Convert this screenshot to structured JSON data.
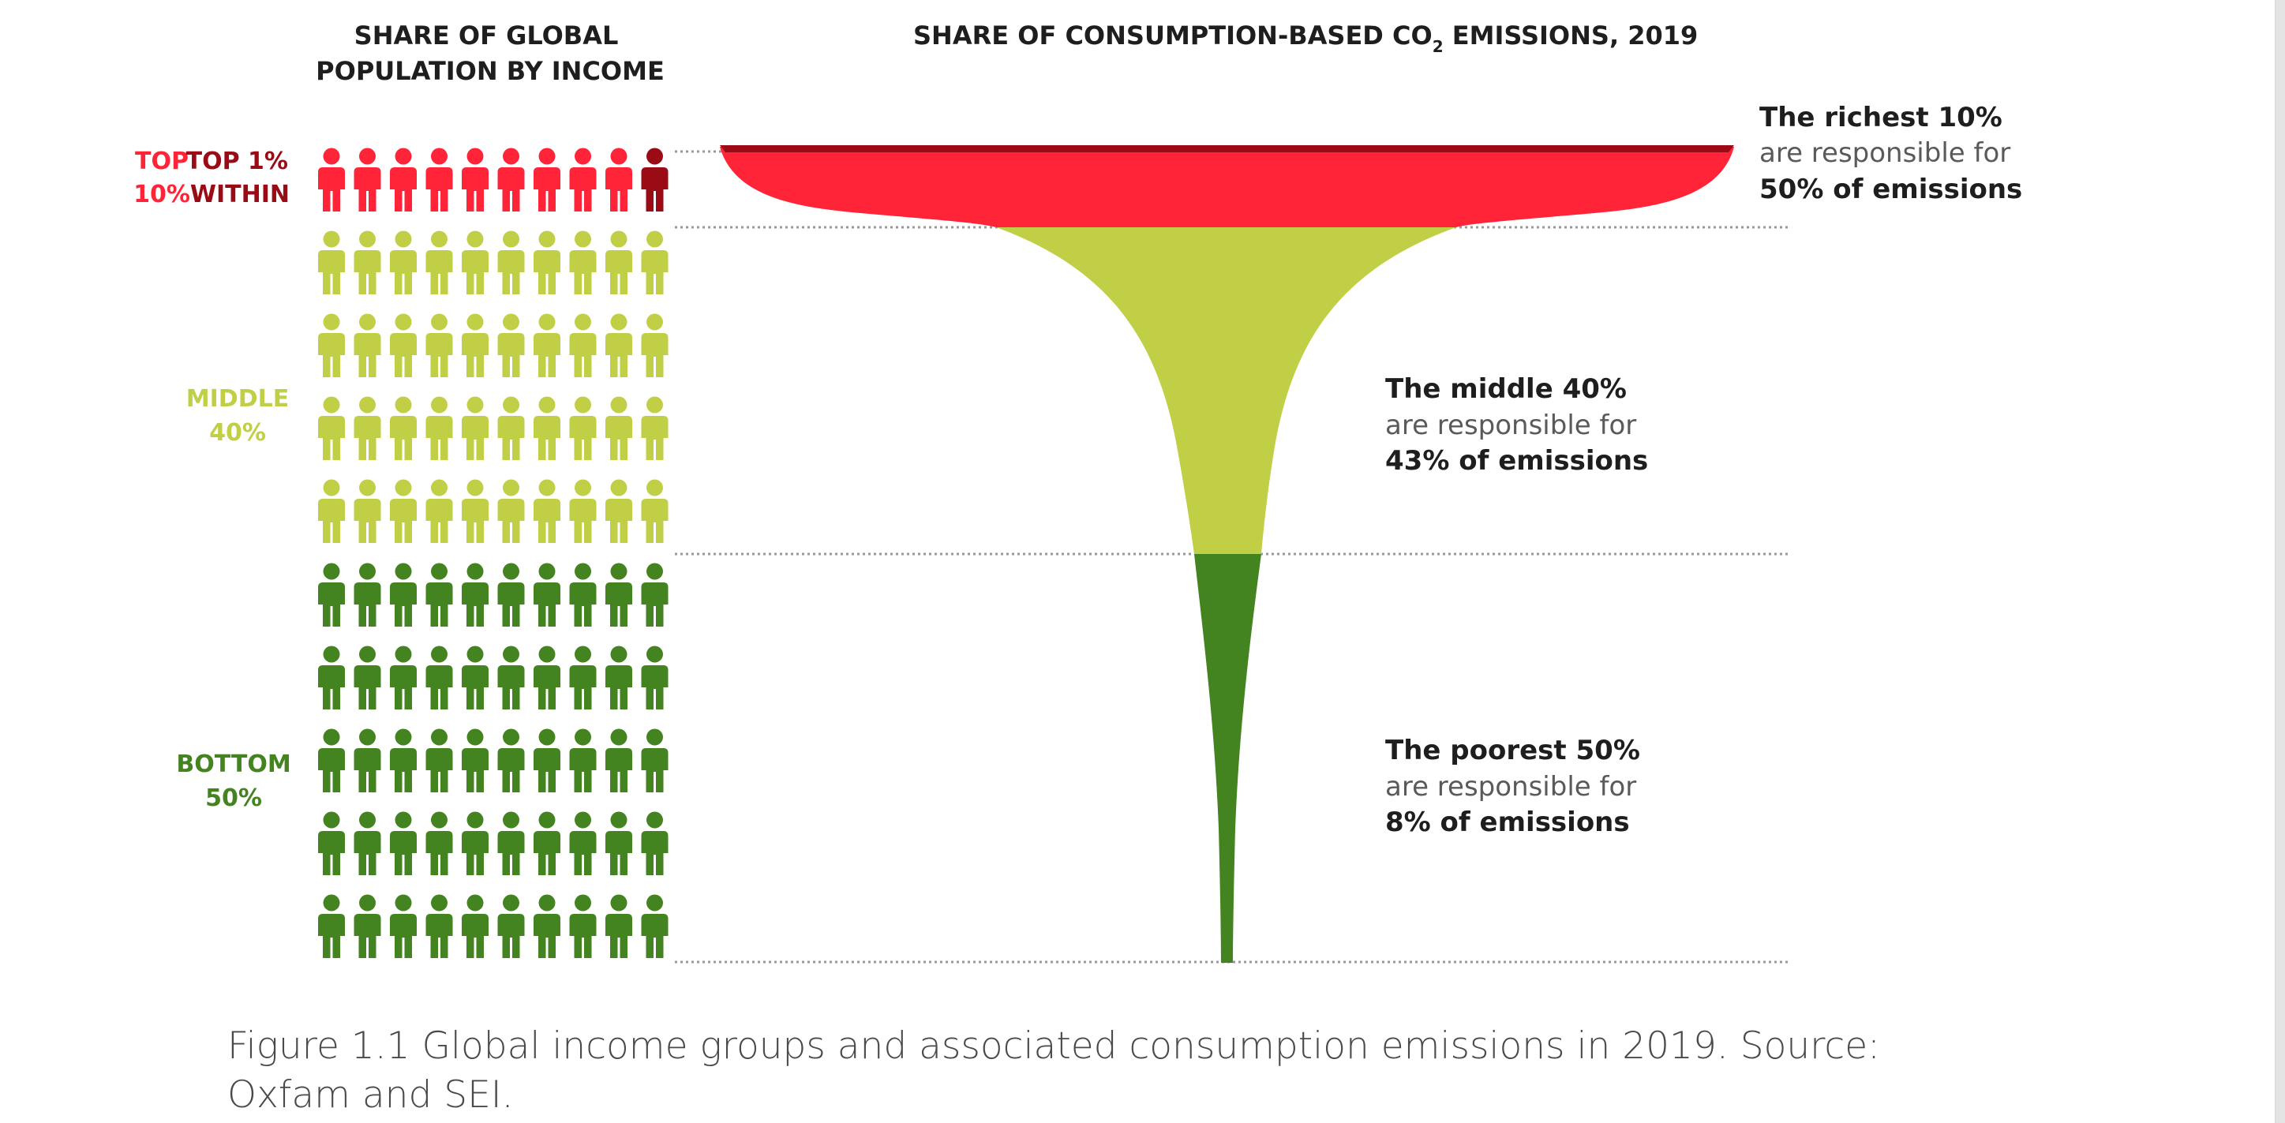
{
  "chart_data": [
    {
      "type": "pictogram",
      "title": "SHARE OF GLOBAL POPULATION BY INCOME",
      "title_lines": [
        "SHARE OF GLOBAL",
        "POPULATION BY INCOME"
      ],
      "icons_per_row": 10,
      "groups": [
        {
          "id": "top",
          "label_lines": [
            "TOP",
            "10%"
          ],
          "sublabel_lines": [
            "TOP 1%",
            "WITHIN"
          ],
          "rows": 1,
          "percent": 10,
          "highlight_last": 1
        },
        {
          "id": "middle",
          "label_lines": [
            "MIDDLE",
            "40%"
          ],
          "rows": 4,
          "percent": 40
        },
        {
          "id": "bottom",
          "label_lines": [
            "BOTTOM",
            "50%"
          ],
          "rows": 5,
          "percent": 50
        }
      ]
    },
    {
      "type": "funnel",
      "title": "SHARE OF CONSUMPTION-BASED CO2 EMISSIONS, 2019",
      "title_parts": {
        "before": "SHARE OF CONSUMPTION-BASED CO",
        "subscript": "2",
        "after": " EMISSIONS, 2019"
      },
      "series": [
        {
          "name": "The richest 10%",
          "population_percent": 10,
          "emissions_percent": 50,
          "annotation": [
            "The richest 10%",
            "are responsible for",
            "50% of emissions"
          ]
        },
        {
          "name": "The middle 40%",
          "population_percent": 40,
          "emissions_percent": 43,
          "annotation": [
            "The middle 40%",
            "are responsible for",
            "43% of emissions"
          ]
        },
        {
          "name": "The poorest 50%",
          "population_percent": 50,
          "emissions_percent": 8,
          "annotation": [
            "The poorest 50%",
            "are responsible for",
            "8% of emissions"
          ]
        }
      ]
    }
  ],
  "colors": {
    "top": "#ff2438",
    "top1": "#9a0b16",
    "middle": "#c1cf46",
    "bottom": "#438320",
    "text_dark": "#1e1e1e",
    "text_light": "#5a5a5a",
    "guide": "#9a9a9a"
  },
  "caption": "Figure 1.1 Global income groups and associated consumption emissions in 2019. Source: Oxfam and SEI."
}
